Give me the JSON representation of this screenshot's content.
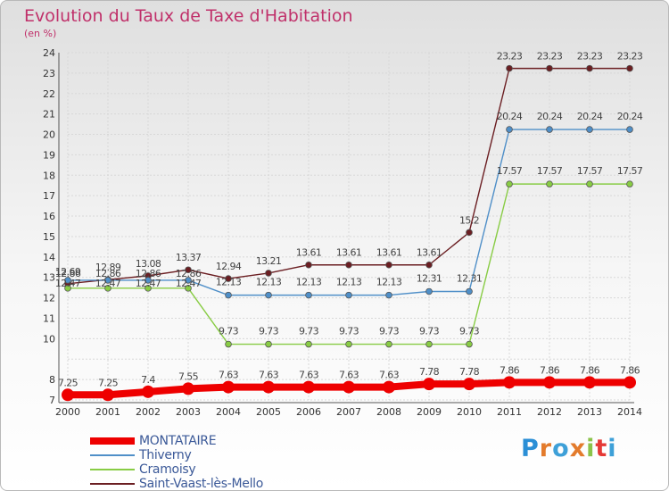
{
  "title": "Evolution du Taux de Taxe d'Habitation",
  "subtitle": "(en %)",
  "logo": {
    "text": "Proxiti"
  },
  "chart_data": {
    "type": "line",
    "title": "Evolution du Taux de Taxe d'Habitation",
    "ylabel": "(en %)",
    "xlabel": "",
    "x": [
      2000,
      2001,
      2002,
      2003,
      2004,
      2005,
      2006,
      2007,
      2008,
      2009,
      2010,
      2011,
      2012,
      2013,
      2014
    ],
    "ylim": [
      7,
      24
    ],
    "yticks": [
      7,
      8,
      10,
      11,
      12,
      13,
      14,
      15,
      16,
      17,
      18,
      19,
      20,
      21,
      22,
      23,
      24
    ],
    "legend_position": "bottom-left",
    "series": [
      {
        "name": "MONTATAIRE",
        "color": "#ee0000",
        "values": [
          7.25,
          7.25,
          7.4,
          7.55,
          7.63,
          7.63,
          7.63,
          7.63,
          7.63,
          7.78,
          7.78,
          7.86,
          7.86,
          7.86,
          7.86
        ]
      },
      {
        "name": "Thiverny",
        "color": "#4f8fc8",
        "values": [
          12.86,
          12.86,
          12.86,
          12.86,
          12.13,
          12.13,
          12.13,
          12.13,
          12.13,
          12.31,
          12.31,
          20.24,
          20.24,
          20.24,
          20.24
        ]
      },
      {
        "name": "Cramoisy",
        "color": "#88cc44",
        "values": [
          12.47,
          12.47,
          12.47,
          12.47,
          9.73,
          9.73,
          9.73,
          9.73,
          9.73,
          9.73,
          9.73,
          17.57,
          17.57,
          17.57,
          17.57
        ]
      },
      {
        "name": "Saint-Vaast-lès-Mello",
        "color": "#6b1e22",
        "values": [
          12.69,
          12.89,
          13.08,
          13.37,
          12.94,
          13.21,
          13.61,
          13.61,
          13.61,
          13.61,
          15.2,
          23.23,
          23.23,
          23.23,
          23.23
        ]
      }
    ],
    "labels": {
      "MONTATAIRE": [
        "7.25",
        "7.25",
        "7.4",
        "7.55",
        "7.63",
        "7.63",
        "7.63",
        "7.63",
        "7.63",
        "7.78",
        "7.78",
        "7.86",
        "7.86",
        "7.86",
        "7.86"
      ],
      "Thiverny": [
        "12.86",
        "12.86",
        "12.86",
        "12.86",
        "12.13",
        "12.13",
        "12.13",
        "12.13",
        "12.13",
        "12.31",
        "12.31",
        "20.24",
        "20.24",
        "20.24",
        "20.24"
      ],
      "Cramoisy": [
        "12.47",
        "12.47",
        "12.47",
        "12.47",
        "9.73",
        "9.73",
        "9.73",
        "9.73",
        "9.73",
        "9.73",
        "9.73",
        "17.57",
        "17.57",
        "17.57",
        "17.57"
      ],
      "Saint-Vaast-lès-Mello": [
        "12.69",
        "12.89",
        "13.08",
        "13.37",
        "12.94",
        "13.21",
        "13.61",
        "13.61",
        "13.61",
        "13.61",
        "15.2",
        "23.23",
        "23.23",
        "23.23",
        "23.23"
      ]
    }
  }
}
